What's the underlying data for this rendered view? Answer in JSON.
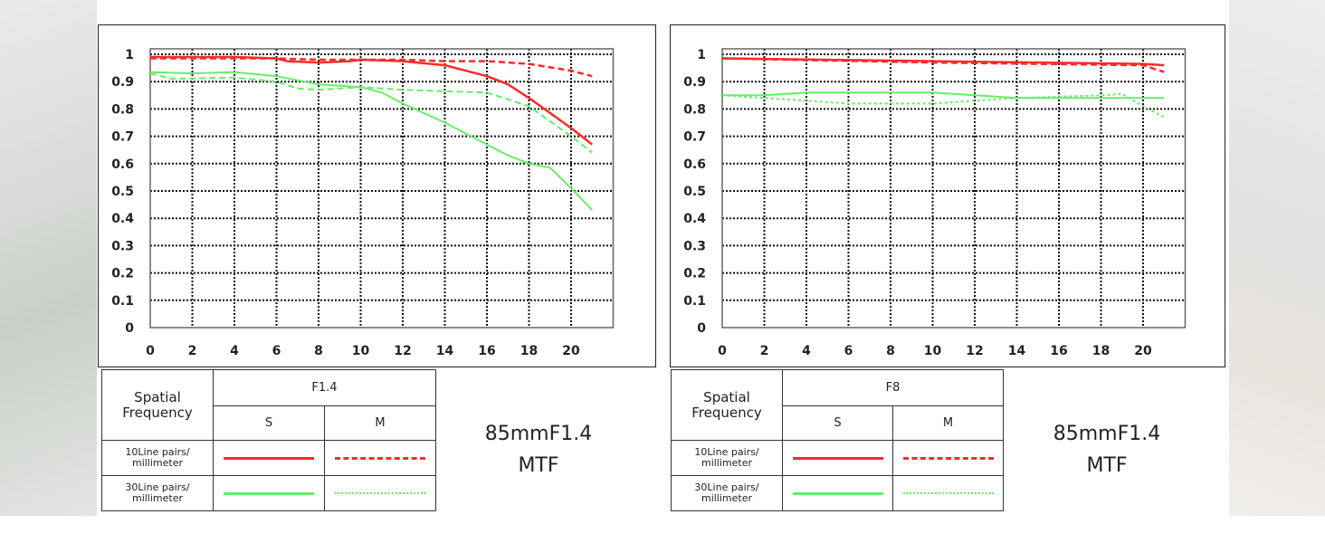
{
  "legend_labels": {
    "spatial_frequency": "Spatial Frequency",
    "s": "S",
    "m": "M",
    "lp10": "10Line pairs/ millimeter",
    "lp30": "30Line pairs/ millimeter"
  },
  "colors": {
    "red": "#ff2a2a",
    "green": "#66ee66"
  },
  "chart_data": [
    {
      "type": "line",
      "title": "85mmF1.4 MTF",
      "aperture": "F1.4",
      "xlim": [
        0,
        22
      ],
      "ylim": [
        0,
        1
      ],
      "xticks": [
        "0",
        "2",
        "4",
        "6",
        "8",
        "10",
        "12",
        "14",
        "16",
        "18",
        "20"
      ],
      "yticks": [
        "0",
        "0.1",
        "0.2",
        "0.3",
        "0.4",
        "0.5",
        "0.6",
        "0.7",
        "0.8",
        "0.9",
        "1"
      ],
      "grid": true,
      "series": [
        {
          "name": "10Line pairs/millimeter S",
          "color": "#ff2a2a",
          "style": "solid",
          "x": [
            0,
            2,
            4,
            6,
            6.5,
            8,
            9.5,
            10,
            12,
            14,
            16,
            17,
            18,
            20,
            21
          ],
          "y": [
            0.99,
            0.99,
            0.99,
            0.985,
            0.975,
            0.97,
            0.975,
            0.98,
            0.975,
            0.96,
            0.92,
            0.89,
            0.84,
            0.73,
            0.67
          ]
        },
        {
          "name": "10Line pairs/millimeter M",
          "color": "#ff2a2a",
          "style": "dashed",
          "x": [
            0,
            6,
            8,
            10,
            12,
            14,
            16,
            18,
            20,
            21
          ],
          "y": [
            0.985,
            0.985,
            0.98,
            0.98,
            0.98,
            0.975,
            0.975,
            0.965,
            0.94,
            0.92
          ]
        },
        {
          "name": "30Line pairs/millimeter S",
          "color": "#66ee66",
          "style": "solid",
          "x": [
            0,
            2,
            4,
            6,
            8,
            10,
            11,
            12,
            14,
            16,
            17,
            18,
            19,
            20,
            21
          ],
          "y": [
            0.935,
            0.93,
            0.935,
            0.92,
            0.89,
            0.88,
            0.86,
            0.82,
            0.75,
            0.67,
            0.63,
            0.6,
            0.585,
            0.51,
            0.43
          ]
        },
        {
          "name": "30Line pairs/millimeter M",
          "color": "#66ee66",
          "style": "dashed",
          "x": [
            0,
            1,
            4,
            6,
            7,
            8,
            9,
            10,
            12,
            14,
            16,
            18,
            20,
            21
          ],
          "y": [
            0.93,
            0.91,
            0.915,
            0.9,
            0.875,
            0.87,
            0.875,
            0.88,
            0.87,
            0.865,
            0.86,
            0.81,
            0.7,
            0.64
          ]
        }
      ]
    },
    {
      "type": "line",
      "title": "85mmF1.4 MTF",
      "aperture": "F8",
      "xlim": [
        0,
        22
      ],
      "ylim": [
        0,
        1
      ],
      "xticks": [
        "0",
        "2",
        "4",
        "6",
        "8",
        "10",
        "12",
        "14",
        "16",
        "18",
        "20"
      ],
      "yticks": [
        "0",
        "0.1",
        "0.2",
        "0.3",
        "0.4",
        "0.5",
        "0.6",
        "0.7",
        "0.8",
        "0.9",
        "1"
      ],
      "grid": true,
      "series": [
        {
          "name": "10Line pairs/millimeter S",
          "color": "#ff2a2a",
          "style": "solid",
          "x": [
            0,
            10,
            20,
            21
          ],
          "y": [
            0.985,
            0.975,
            0.965,
            0.96
          ]
        },
        {
          "name": "10Line pairs/millimeter M",
          "color": "#ff2a2a",
          "style": "dashed",
          "x": [
            0,
            10,
            20,
            21
          ],
          "y": [
            0.985,
            0.97,
            0.96,
            0.935
          ]
        },
        {
          "name": "30Line pairs/millimeter S",
          "color": "#66ee66",
          "style": "solid",
          "x": [
            0,
            2,
            4,
            6,
            10,
            14,
            18,
            21
          ],
          "y": [
            0.85,
            0.85,
            0.86,
            0.86,
            0.86,
            0.84,
            0.84,
            0.84
          ]
        },
        {
          "name": "30Line pairs/millimeter M",
          "color": "#66ee66",
          "style": "dotted",
          "x": [
            0,
            2,
            4,
            6,
            10,
            12,
            14,
            16,
            18,
            19,
            20,
            21
          ],
          "y": [
            0.85,
            0.84,
            0.83,
            0.82,
            0.82,
            0.83,
            0.84,
            0.845,
            0.85,
            0.855,
            0.81,
            0.77
          ]
        }
      ]
    }
  ]
}
